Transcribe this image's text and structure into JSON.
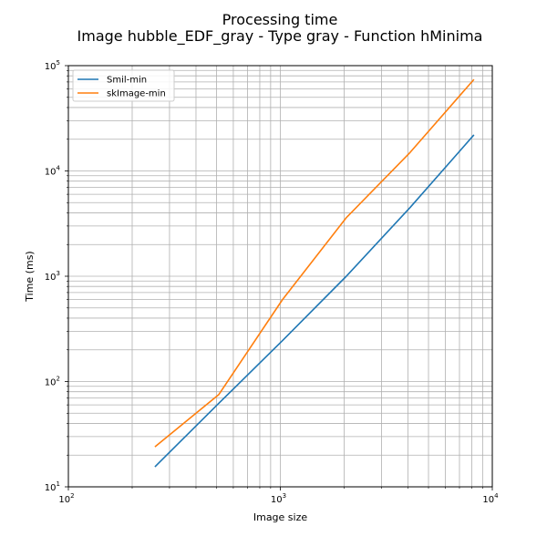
{
  "chart_data": {
    "type": "line",
    "title_line1": "Processing time",
    "title_line2": "Image hubble_EDF_gray - Type gray - Function hMinima",
    "xlabel": "Image size",
    "ylabel": "Time (ms)",
    "xscale": "log",
    "yscale": "log",
    "xlim": [
      100,
      10000
    ],
    "ylim": [
      10,
      100000
    ],
    "grid": "both-major-and-minor",
    "legend_position": "upper-left",
    "x_ticks": [
      {
        "value": 100,
        "base": "10",
        "exp": "2"
      },
      {
        "value": 1000,
        "base": "10",
        "exp": "3"
      },
      {
        "value": 10000,
        "base": "10",
        "exp": "4"
      }
    ],
    "y_ticks": [
      {
        "value": 10,
        "base": "10",
        "exp": "1"
      },
      {
        "value": 100,
        "base": "10",
        "exp": "2"
      },
      {
        "value": 1000,
        "base": "10",
        "exp": "3"
      },
      {
        "value": 10000,
        "base": "10",
        "exp": "4"
      },
      {
        "value": 100000,
        "base": "10",
        "exp": "5"
      }
    ],
    "series": [
      {
        "name": "Smil-min",
        "color": "#1f77b4",
        "x": [
          256,
          512,
          1024,
          2048,
          4096,
          8192
        ],
        "y": [
          15.5,
          62,
          245,
          1000,
          4500,
          22000
        ]
      },
      {
        "name": "skImage-min",
        "color": "#ff7f0e",
        "x": [
          256,
          512,
          1024,
          2048,
          4096,
          8192
        ],
        "y": [
          24,
          75,
          600,
          3600,
          15000,
          74000
        ]
      }
    ]
  }
}
